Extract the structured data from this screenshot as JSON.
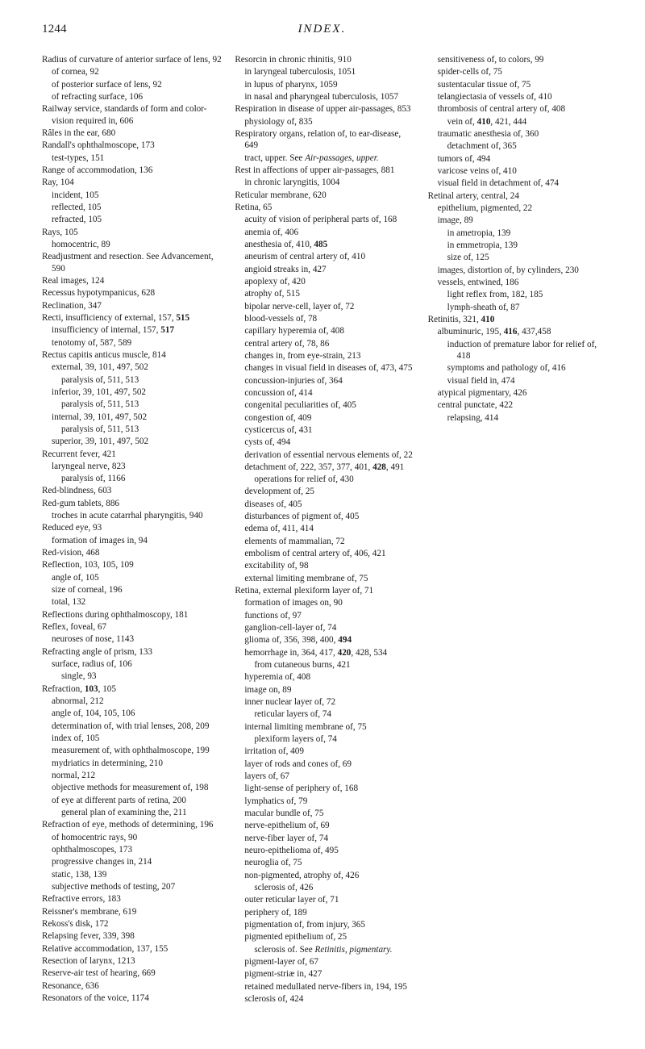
{
  "header": {
    "page_number": "1244",
    "title": "INDEX."
  },
  "entries": [
    {
      "t": "Radius of curvature of anterior surface of lens, 92",
      "lvl": 0
    },
    {
      "t": "of cornea, 92",
      "lvl": 1
    },
    {
      "t": "of posterior surface of lens, 92",
      "lvl": 1
    },
    {
      "t": "of refracting surface, 106",
      "lvl": 1
    },
    {
      "t": "Railway service, standards of form and color-vision required in, 606",
      "lvl": 0
    },
    {
      "t": "Râles in the ear, 680",
      "lvl": 0
    },
    {
      "t": "Randall's ophthalmoscope, 173",
      "lvl": 0
    },
    {
      "t": "test-types, 151",
      "lvl": 1
    },
    {
      "t": "Range of accommodation, 136",
      "lvl": 0
    },
    {
      "t": "Ray, 104",
      "lvl": 0
    },
    {
      "t": "incident, 105",
      "lvl": 1
    },
    {
      "t": "reflected, 105",
      "lvl": 1
    },
    {
      "t": "refracted, 105",
      "lvl": 1
    },
    {
      "t": "Rays, 105",
      "lvl": 0
    },
    {
      "t": "homocentric, 89",
      "lvl": 1
    },
    {
      "t": "Readjustment and resection. See Advancement, 590",
      "lvl": 0,
      "italic_after": "See "
    },
    {
      "t": "Real images, 124",
      "lvl": 0
    },
    {
      "t": "Recessus hypotympanicus, 628",
      "lvl": 0
    },
    {
      "t": "Reclination, 347",
      "lvl": 0
    },
    {
      "t": "Recti, insufficiency of external, 157, 515",
      "lvl": 0,
      "bold": "515"
    },
    {
      "t": "insufficiency of internal, 157, 517",
      "lvl": 1,
      "bold": "517"
    },
    {
      "t": "tenotomy of, 587, 589",
      "lvl": 1
    },
    {
      "t": "Rectus capitis anticus muscle, 814",
      "lvl": 0
    },
    {
      "t": "external, 39, 101, 497, 502",
      "lvl": 1
    },
    {
      "t": "paralysis of, 511, 513",
      "lvl": 2
    },
    {
      "t": "inferior, 39, 101, 497, 502",
      "lvl": 1
    },
    {
      "t": "paralysis of, 511, 513",
      "lvl": 2
    },
    {
      "t": "internal, 39, 101, 497, 502",
      "lvl": 1
    },
    {
      "t": "paralysis of, 511, 513",
      "lvl": 2
    },
    {
      "t": "superior, 39, 101, 497, 502",
      "lvl": 1
    },
    {
      "t": "Recurrent fever, 421",
      "lvl": 0
    },
    {
      "t": "laryngeal nerve, 823",
      "lvl": 1
    },
    {
      "t": "paralysis of, 1166",
      "lvl": 2
    },
    {
      "t": "Red-blindness, 603",
      "lvl": 0
    },
    {
      "t": "Red-gum tablets, 886",
      "lvl": 0
    },
    {
      "t": "troches in acute catarrhal pharyngitis, 940",
      "lvl": 1
    },
    {
      "t": "Reduced eye, 93",
      "lvl": 0
    },
    {
      "t": "formation of images in, 94",
      "lvl": 1
    },
    {
      "t": "Red-vision, 468",
      "lvl": 0
    },
    {
      "t": "Reflection, 103, 105, 109",
      "lvl": 0
    },
    {
      "t": "angle of, 105",
      "lvl": 1
    },
    {
      "t": "size of corneal, 196",
      "lvl": 1
    },
    {
      "t": "total, 132",
      "lvl": 1
    },
    {
      "t": "Reflections during ophthalmos­copy, 181",
      "lvl": 0
    },
    {
      "t": "Reflex, foveal, 67",
      "lvl": 0
    },
    {
      "t": "neuroses of nose, 1143",
      "lvl": 1
    },
    {
      "t": "Refracting angle of prism, 133",
      "lvl": 0
    },
    {
      "t": "surface, radius of, 106",
      "lvl": 1
    },
    {
      "t": "single, 93",
      "lvl": 2
    },
    {
      "t": "Refraction, 103, 105",
      "lvl": 0,
      "bold": "103"
    },
    {
      "t": "abnormal, 212",
      "lvl": 1
    },
    {
      "t": "angle of, 104, 105, 106",
      "lvl": 1
    },
    {
      "t": "determination of, with trial lenses, 208, 209",
      "lvl": 1
    },
    {
      "t": "index of, 105",
      "lvl": 1
    },
    {
      "t": "measurement of, with oph­thalmoscope, 199",
      "lvl": 1
    },
    {
      "t": "mydriatics in determining, 210",
      "lvl": 1
    },
    {
      "t": "normal, 212",
      "lvl": 1
    },
    {
      "t": "objective methods for meas­urement of, 198",
      "lvl": 1
    },
    {
      "t": "of eye at different parts of re­tina, 200",
      "lvl": 1
    },
    {
      "t": "general plan of examining the, 211",
      "lvl": 2
    },
    {
      "t": "Refraction of eye, methods of determining, 196",
      "lvl": 0
    },
    {
      "t": "of homocentric rays, 90",
      "lvl": 1
    },
    {
      "t": "ophthalmoscopes, 173",
      "lvl": 1
    },
    {
      "t": "progressive changes in, 214",
      "lvl": 1
    },
    {
      "t": "static, 138, 139",
      "lvl": 1
    },
    {
      "t": "subjective methods of test­ing, 207",
      "lvl": 1
    },
    {
      "t": "Refractive errors, 183",
      "lvl": 0
    },
    {
      "t": "Reissner's membrane, 619",
      "lvl": 0
    },
    {
      "t": "Rekoss's disk, 172",
      "lvl": 0
    },
    {
      "t": "Relapsing fever, 339, 398",
      "lvl": 0
    },
    {
      "t": "Relative accommodation, 137, 155",
      "lvl": 0
    },
    {
      "t": "Resection of larynx, 1213",
      "lvl": 0
    },
    {
      "t": "Reserve-air test of hearing, 669",
      "lvl": 0
    },
    {
      "t": "Resonance, 636",
      "lvl": 0
    },
    {
      "t": "Resonators of the voice, 1174",
      "lvl": 0
    },
    {
      "t": "Resorcin in chronic rhinitis, 910",
      "lvl": 0
    },
    {
      "t": "in laryngeal tuberculosis, 1051",
      "lvl": 1
    },
    {
      "t": "in lupus of pharynx, 1059",
      "lvl": 1
    },
    {
      "t": "in nasal and pharyngeal tu­berculosis, 1057",
      "lvl": 1
    },
    {
      "t": "Respiration in disease of upper air-passages, 853",
      "lvl": 0
    },
    {
      "t": "physiology of, 835",
      "lvl": 1
    },
    {
      "t": "Respiratory organs, relation of, to ear-disease, 649",
      "lvl": 0
    },
    {
      "t": "tract, upper. See Air-passages, upper.",
      "lvl": 1,
      "italic": "Air-passages, upper."
    },
    {
      "t": "Rest in affections of upper air-passages, 881",
      "lvl": 0
    },
    {
      "t": "in chronic laryngitis, 1004",
      "lvl": 1
    },
    {
      "t": "Reticular membrane, 620",
      "lvl": 0
    },
    {
      "t": "Retina, 65",
      "lvl": 0
    },
    {
      "t": "acuity of vision of peripheral parts of, 168",
      "lvl": 1
    },
    {
      "t": "anemia of, 406",
      "lvl": 1
    },
    {
      "t": "anesthesia of, 410, 485",
      "lvl": 1,
      "bold": "485"
    },
    {
      "t": "aneurism of central artery of, 410",
      "lvl": 1
    },
    {
      "t": "angioid streaks in, 427",
      "lvl": 1
    },
    {
      "t": "apoplexy of, 420",
      "lvl": 1
    },
    {
      "t": "atrophy of, 515",
      "lvl": 1
    },
    {
      "t": "bipolar nerve-cell, layer of, 72",
      "lvl": 1
    },
    {
      "t": "blood-vessels of, 78",
      "lvl": 1
    },
    {
      "t": "capillary hyperemia of, 408",
      "lvl": 1
    },
    {
      "t": "central artery of, 78, 86",
      "lvl": 1
    },
    {
      "t": "changes in, from eye-strain, 213",
      "lvl": 1
    },
    {
      "t": "changes in visual field in dis­eases of, 473, 475",
      "lvl": 1
    },
    {
      "t": "concussion-injuries of, 364",
      "lvl": 1
    },
    {
      "t": "concussion of, 414",
      "lvl": 1
    },
    {
      "t": "congenital peculiarities of, 405",
      "lvl": 1
    },
    {
      "t": "congestion of, 409",
      "lvl": 1
    },
    {
      "t": "cysticercus of, 431",
      "lvl": 1
    },
    {
      "t": "cysts of, 494",
      "lvl": 1
    },
    {
      "t": "derivation of essential ner­vous elements of, 22",
      "lvl": 1
    },
    {
      "t": "detachment of, 222, 357, 377, 401, 428, 491",
      "lvl": 1,
      "bold": "428"
    },
    {
      "t": "operations for relief of, 430",
      "lvl": 2
    },
    {
      "t": "development of, 25",
      "lvl": 1
    },
    {
      "t": "diseases of, 405",
      "lvl": 1
    },
    {
      "t": "disturbances of pigment of, 405",
      "lvl": 1
    },
    {
      "t": "edema of, 411, 414",
      "lvl": 1
    },
    {
      "t": "elements of mammalian, 72",
      "lvl": 1
    },
    {
      "t": "embolism of central artery of, 406, 421",
      "lvl": 1
    },
    {
      "t": "excitability of, 98",
      "lvl": 1
    },
    {
      "t": "external limiting membrane of, 75",
      "lvl": 1
    },
    {
      "t": "Retina, external plexiform layer of, 71",
      "lvl": 0
    },
    {
      "t": "formation of images on, 90",
      "lvl": 1
    },
    {
      "t": "functions of, 97",
      "lvl": 1
    },
    {
      "t": "ganglion-cell-layer of, 74",
      "lvl": 1
    },
    {
      "t": "glioma of, 356, 398, 400, 494",
      "lvl": 1,
      "bold": "494"
    },
    {
      "t": "hemorrhage in, 364, 417, 420, 428, 534",
      "lvl": 1,
      "bold": "420"
    },
    {
      "t": "from cutaneous burns, 421",
      "lvl": 2
    },
    {
      "t": "hyperemia of, 408",
      "lvl": 1
    },
    {
      "t": "image on, 89",
      "lvl": 1
    },
    {
      "t": "inner nuclear layer of, 72",
      "lvl": 1
    },
    {
      "t": "reticular layers of, 74",
      "lvl": 2
    },
    {
      "t": "internal limiting membrane of, 75",
      "lvl": 1
    },
    {
      "t": "plexiform layers of, 74",
      "lvl": 2
    },
    {
      "t": "irritation of, 409",
      "lvl": 1
    },
    {
      "t": "layer of rods and cones of, 69",
      "lvl": 1
    },
    {
      "t": "layers of, 67",
      "lvl": 1
    },
    {
      "t": "light-sense of periphery of, 168",
      "lvl": 1
    },
    {
      "t": "lymphatics of, 79",
      "lvl": 1
    },
    {
      "t": "macular bundle of, 75",
      "lvl": 1
    },
    {
      "t": "nerve-epithelium of, 69",
      "lvl": 1
    },
    {
      "t": "nerve-fiber layer of, 74",
      "lvl": 1
    },
    {
      "t": "neuro-epithelioma of, 495",
      "lvl": 1
    },
    {
      "t": "neuroglia of, 75",
      "lvl": 1
    },
    {
      "t": "non-pigmented, atrophy of, 426",
      "lvl": 1
    },
    {
      "t": "sclerosis of, 426",
      "lvl": 2
    },
    {
      "t": "outer reticular layer of, 71",
      "lvl": 1
    },
    {
      "t": "periphery of, 189",
      "lvl": 1
    },
    {
      "t": "pigmentation of, from injury, 365",
      "lvl": 1
    },
    {
      "t": "pigmented epithelium of, 25",
      "lvl": 1
    },
    {
      "t": "sclerosis of. See Retinitis, pigmentary.",
      "lvl": 2,
      "italic": "Retinitis, pigmentary."
    },
    {
      "t": "pigment-layer of, 67",
      "lvl": 1
    },
    {
      "t": "pigment-striæ in, 427",
      "lvl": 1
    },
    {
      "t": "retained medullated nerve-fibers in, 194, 195",
      "lvl": 1
    },
    {
      "t": "sclerosis of, 424",
      "lvl": 1
    },
    {
      "t": "sensitiveness of, to colors, 99",
      "lvl": 1
    },
    {
      "t": "spider-cells of, 75",
      "lvl": 1
    },
    {
      "t": "sustentacular tissue of, 75",
      "lvl": 1
    },
    {
      "t": "telangiectasia of vessels of, 410",
      "lvl": 1
    },
    {
      "t": "thrombosis of central artery of, 408",
      "lvl": 1
    },
    {
      "t": "vein of, 410, 421, 444",
      "lvl": 2,
      "bold": "410"
    },
    {
      "t": "traumatic anesthesia of, 360",
      "lvl": 1
    },
    {
      "t": "detachment of, 365",
      "lvl": 2
    },
    {
      "t": "tumors of, 494",
      "lvl": 1
    },
    {
      "t": "varicose veins of, 410",
      "lvl": 1
    },
    {
      "t": "visual field in detachment of, 474",
      "lvl": 1
    },
    {
      "t": "Retinal artery, central, 24",
      "lvl": 0
    },
    {
      "t": "epithelium, pigmented, 22",
      "lvl": 1
    },
    {
      "t": "image, 89",
      "lvl": 1
    },
    {
      "t": "in ametropia, 139",
      "lvl": 2
    },
    {
      "t": "in emmetropia, 139",
      "lvl": 2
    },
    {
      "t": "size of, 125",
      "lvl": 2
    },
    {
      "t": "images, distortion of, by cyl­inders, 230",
      "lvl": 1
    },
    {
      "t": "vessels, entwined, 186",
      "lvl": 1
    },
    {
      "t": "light reflex from, 182, 185",
      "lvl": 2
    },
    {
      "t": "lymph-sheath of, 87",
      "lvl": 2
    },
    {
      "t": "Retinitis, 321, 410",
      "lvl": 0,
      "bold": "410"
    },
    {
      "t": "albuminuric, 195, 416, 437,458",
      "lvl": 1,
      "bold": "416"
    },
    {
      "t": "induction of premature labor for relief of, 418",
      "lvl": 2
    },
    {
      "t": "symptoms and pathology of, 416",
      "lvl": 2
    },
    {
      "t": "visual field in, 474",
      "lvl": 2
    },
    {
      "t": "atypical pigmentary, 426",
      "lvl": 1
    },
    {
      "t": "central punctate, 422",
      "lvl": 1
    },
    {
      "t": "relapsing, 414",
      "lvl": 2
    }
  ]
}
